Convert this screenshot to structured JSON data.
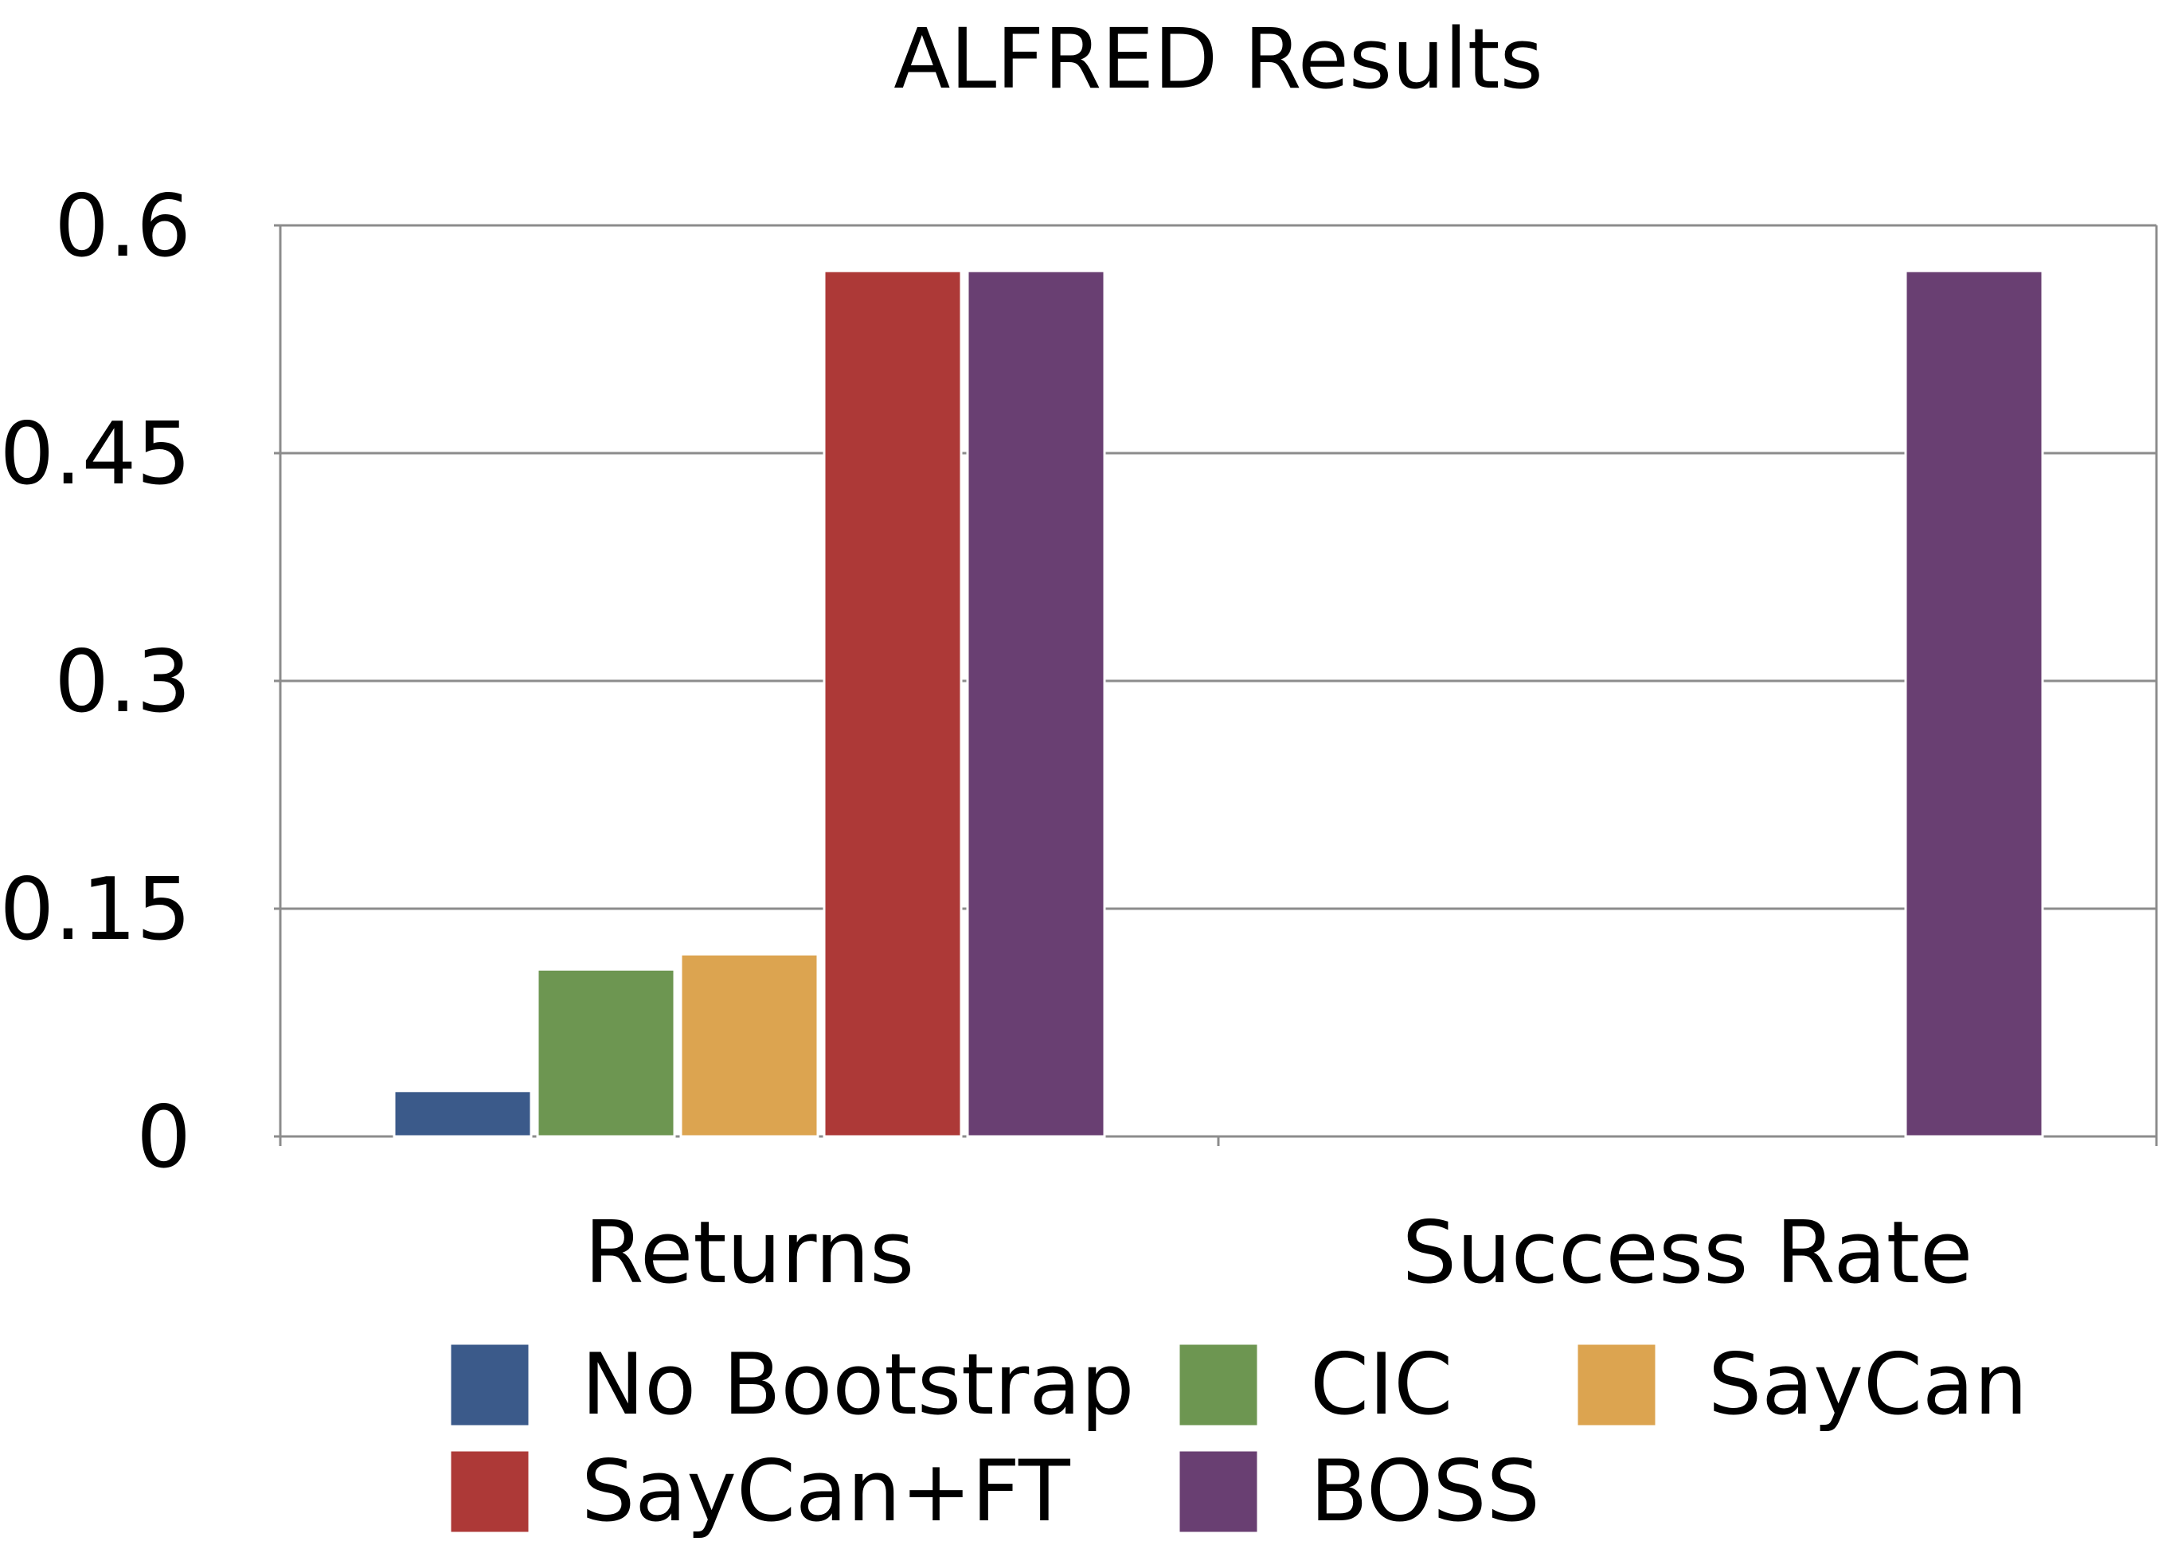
{
  "chart_data": {
    "type": "bar",
    "title": "ALFRED Results",
    "xlabel": "",
    "ylabel": "",
    "categories": [
      "Returns",
      "Success Rate"
    ],
    "series": [
      {
        "name": "No Bootstrap",
        "color": "#3b5a8a",
        "values": [
          0.03,
          0
        ]
      },
      {
        "name": "CIC",
        "color": "#6d9651",
        "values": [
          0.11,
          0
        ]
      },
      {
        "name": "SayCan",
        "color": "#dca450",
        "values": [
          0.12,
          0
        ]
      },
      {
        "name": "SayCan+FT",
        "color": "#ad3937",
        "values": [
          0.57,
          0
        ]
      },
      {
        "name": "BOSS",
        "color": "#693f72",
        "values": [
          0.57,
          0.57
        ]
      }
    ],
    "ylim": [
      0,
      0.6
    ],
    "yticks": [
      0,
      0.15,
      0.3,
      0.45,
      0.6
    ],
    "ytick_labels": [
      "0",
      "0.15",
      "0.3",
      "0.45",
      "0.6"
    ],
    "grid": true,
    "legend_position": "bottom"
  }
}
